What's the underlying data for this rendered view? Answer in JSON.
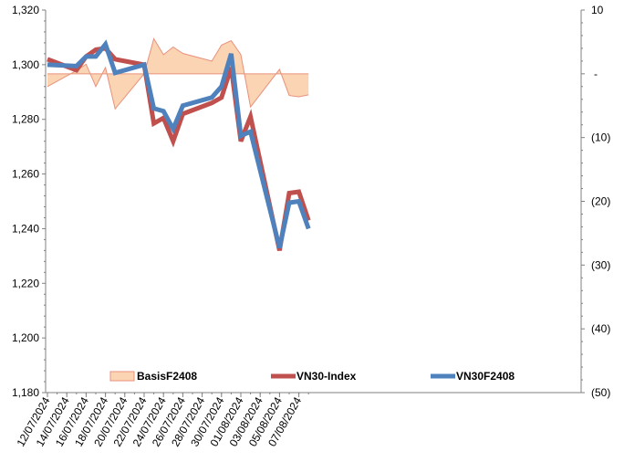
{
  "chart_data": {
    "type": "line",
    "x": [
      "12/07/2024",
      "13/07/2024",
      "14/07/2024",
      "15/07/2024",
      "16/07/2024",
      "17/07/2024",
      "18/07/2024",
      "19/07/2024",
      "20/07/2024",
      "21/07/2024",
      "22/07/2024",
      "23/07/2024",
      "24/07/2024",
      "25/07/2024",
      "26/07/2024",
      "27/07/2024",
      "28/07/2024",
      "29/07/2024",
      "30/07/2024",
      "31/07/2024",
      "01/08/2024",
      "02/08/2024",
      "03/08/2024",
      "04/08/2024",
      "05/08/2024",
      "06/08/2024",
      "07/08/2024",
      "08/08/2024"
    ],
    "x_tick_labels": [
      "12/07/2024",
      "14/07/2024",
      "16/07/2024",
      "18/07/2024",
      "20/07/2024",
      "22/07/2024",
      "24/07/2024",
      "26/07/2024",
      "28/07/2024",
      "30/07/2024",
      "01/08/2024",
      "03/08/2024",
      "05/08/2024",
      "07/08/2024"
    ],
    "y_left": {
      "min": 1180,
      "max": 1320,
      "step": 20,
      "tick_labels": [
        "1,180",
        "1,200",
        "1,220",
        "1,240",
        "1,260",
        "1,280",
        "1,300",
        "1,320"
      ]
    },
    "y_right": {
      "min": -50,
      "max": 10,
      "step": 10,
      "tick_labels": [
        "(50)",
        "(40)",
        "(30)",
        "(20)",
        "(10)",
        "-",
        "10"
      ]
    },
    "grid": false,
    "legend_position": "bottom-inside",
    "series": [
      {
        "name": "BasisF2408",
        "kind": "area",
        "axis": "right",
        "color": "#fbd4b4",
        "line_color": "#e8927c",
        "x": [
          "12/07/2024",
          "15/07/2024",
          "16/07/2024",
          "17/07/2024",
          "18/07/2024",
          "19/07/2024",
          "22/07/2024",
          "23/07/2024",
          "24/07/2024",
          "25/07/2024",
          "26/07/2024",
          "29/07/2024",
          "30/07/2024",
          "31/07/2024",
          "01/08/2024",
          "02/08/2024",
          "05/08/2024",
          "06/08/2024",
          "07/08/2024",
          "08/08/2024"
        ],
        "values": [
          -2,
          0.5,
          1.5,
          -2,
          1,
          -5.5,
          0,
          5.5,
          3,
          4.2,
          3.2,
          2,
          4.5,
          5.2,
          3,
          -5.2,
          0.7,
          -3.4,
          -3.6,
          -3.3
        ]
      },
      {
        "name": "VN30-Index",
        "kind": "line",
        "axis": "left",
        "color": "#c0504d",
        "x": [
          "12/07/2024",
          "15/07/2024",
          "16/07/2024",
          "17/07/2024",
          "18/07/2024",
          "19/07/2024",
          "22/07/2024",
          "23/07/2024",
          "24/07/2024",
          "25/07/2024",
          "26/07/2024",
          "29/07/2024",
          "30/07/2024",
          "31/07/2024",
          "01/08/2024",
          "02/08/2024",
          "05/08/2024",
          "06/08/2024",
          "07/08/2024",
          "08/08/2024"
        ],
        "values": [
          1302,
          1298,
          1303,
          1305.5,
          1306,
          1302,
          1300,
          1278.5,
          1280.5,
          1272,
          1282,
          1286,
          1288,
          1299,
          1272,
          1281,
          1232,
          1253,
          1253.5,
          1243
        ]
      },
      {
        "name": "VN30F2408",
        "kind": "line",
        "axis": "left",
        "color": "#4f81bd",
        "x": [
          "12/07/2024",
          "15/07/2024",
          "16/07/2024",
          "17/07/2024",
          "18/07/2024",
          "19/07/2024",
          "22/07/2024",
          "23/07/2024",
          "24/07/2024",
          "25/07/2024",
          "26/07/2024",
          "29/07/2024",
          "30/07/2024",
          "31/07/2024",
          "01/08/2024",
          "02/08/2024",
          "05/08/2024",
          "06/08/2024",
          "07/08/2024",
          "08/08/2024"
        ],
        "values": [
          1300,
          1299.5,
          1303,
          1303,
          1307.5,
          1297,
          1300,
          1284,
          1283,
          1276.5,
          1285,
          1288,
          1292,
          1304,
          1274,
          1275.5,
          1233,
          1249.5,
          1250,
          1240
        ]
      }
    ]
  }
}
